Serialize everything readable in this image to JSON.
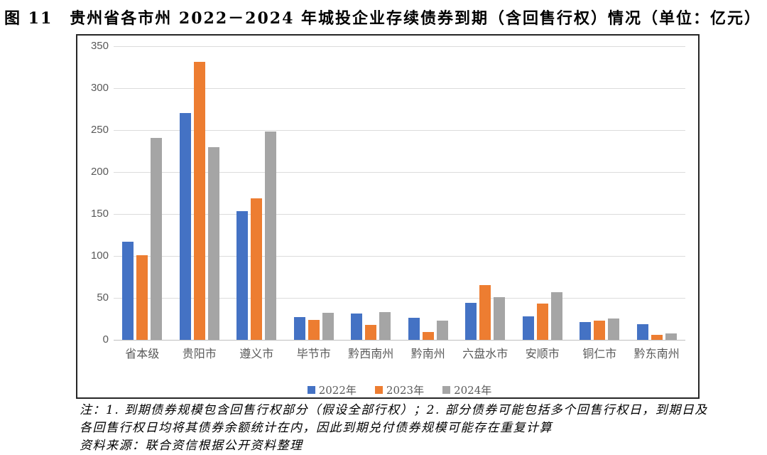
{
  "title": "图 11　贵州省各市州 2022－2024 年城投企业存续债券到期（含回售行权）情况（单位：亿元）",
  "chart_data": {
    "type": "bar",
    "title": "贵州省各市州 2022－2024 年城投企业存续债券到期（含回售行权）情况",
    "unit": "亿元",
    "categories": [
      "省本级",
      "贵阳市",
      "遵义市",
      "毕节市",
      "黔西南州",
      "黔南州",
      "六盘水市",
      "安顺市",
      "铜仁市",
      "黔东南州"
    ],
    "series": [
      {
        "name": "2022年",
        "color": "#4472C4",
        "values": [
          117,
          270,
          153,
          27,
          31,
          26,
          44,
          28,
          21,
          19
        ]
      },
      {
        "name": "2023年",
        "color": "#ED7D31",
        "values": [
          101,
          331,
          169,
          24,
          18,
          9,
          65,
          43,
          23,
          6
        ]
      },
      {
        "name": "2024年",
        "color": "#A5A5A5",
        "values": [
          241,
          230,
          248,
          32,
          33,
          23,
          51,
          57,
          25,
          8
        ]
      }
    ],
    "xlabel": "",
    "ylabel": "",
    "ylim": [
      0,
      350
    ],
    "yticks": [
      0,
      50,
      100,
      150,
      200,
      250,
      300,
      350
    ],
    "grid": true,
    "legend_position": "bottom"
  },
  "footnotes": {
    "line1": "注：1. 到期债券规模包含回售行权部分（假设全部行权）；2. 部分债券可能包括多个回售行权日，到期日及",
    "line2": "各回售行权日均将其债券余额统计在内，因此到期兑付债券规模可能存在重复计算",
    "line3": "资料来源：联合资信根据公开资料整理"
  },
  "colors": {
    "grid": "#DCDCDC",
    "axis": "#BFBFBF",
    "tick_label": "#595959",
    "border": "#262626"
  }
}
